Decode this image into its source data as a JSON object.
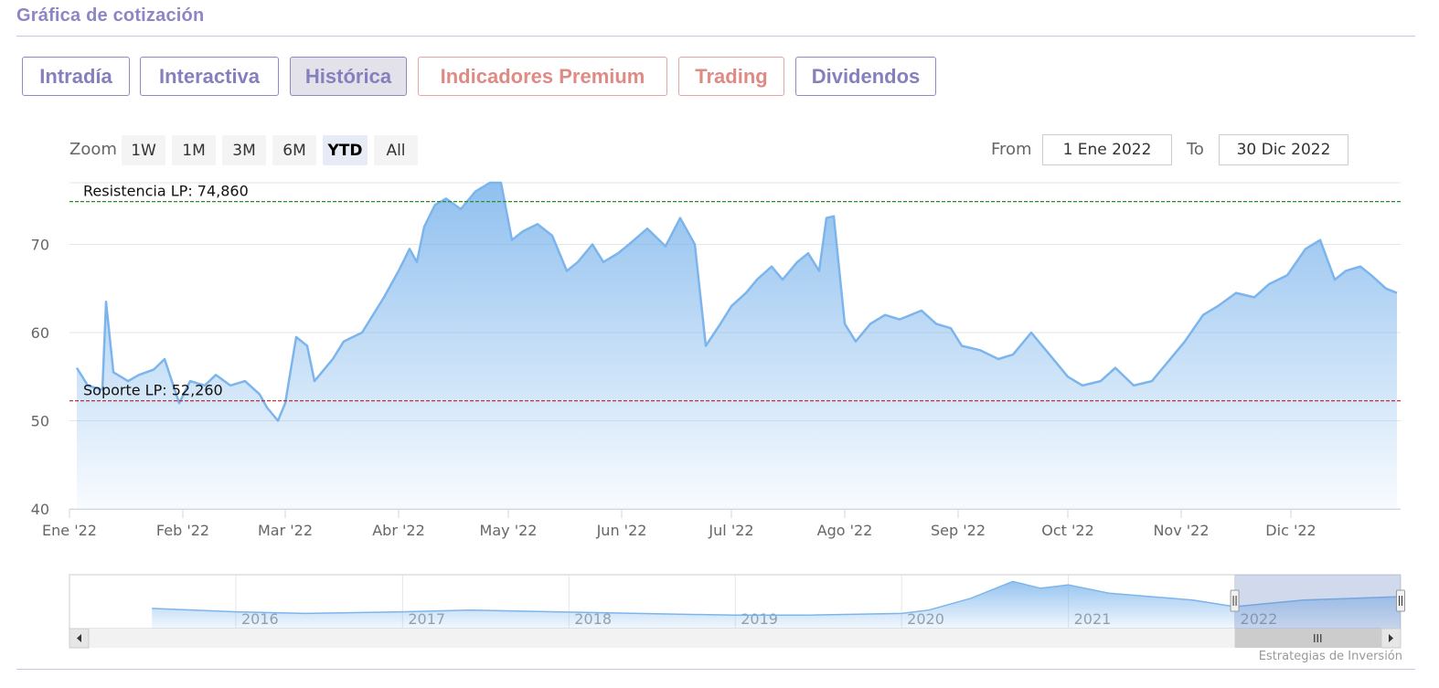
{
  "section": {
    "title": "Gráfica de cotización"
  },
  "tabs": [
    {
      "label": "Intradía",
      "style": "normal"
    },
    {
      "label": "Interactiva",
      "style": "normal"
    },
    {
      "label": "Histórica",
      "style": "active"
    },
    {
      "label": "Indicadores Premium",
      "style": "premium"
    },
    {
      "label": "Trading",
      "style": "premium"
    },
    {
      "label": "Dividendos",
      "style": "normal"
    }
  ],
  "range_selector": {
    "zoom_label": "Zoom",
    "buttons": [
      "1W",
      "1M",
      "3M",
      "6M",
      "YTD",
      "All"
    ],
    "selected": "YTD",
    "from_label": "From",
    "from_value": "1 Ene 2022",
    "to_label": "To",
    "to_value": "30 Dic 2022"
  },
  "colors": {
    "line": "#7cb5ec",
    "resistance": "#2e8b2e",
    "support": "#b22222",
    "tab_text": "#8580bd",
    "premium_text": "#e08a85"
  },
  "chart_data": {
    "type": "area",
    "title": "",
    "xlabel": "",
    "ylabel": "",
    "ylim": [
      40,
      77
    ],
    "yticks": [
      40,
      50,
      60,
      70
    ],
    "grid": true,
    "x_range": [
      "2022-01-01",
      "2022-12-31"
    ],
    "x_ticks": [
      {
        "date": "2022-01-01",
        "label": "Ene '22"
      },
      {
        "date": "2022-02-01",
        "label": "Feb '22"
      },
      {
        "date": "2022-03-01",
        "label": "Mar '22"
      },
      {
        "date": "2022-04-01",
        "label": "Abr '22"
      },
      {
        "date": "2022-05-01",
        "label": "May '22"
      },
      {
        "date": "2022-06-01",
        "label": "Jun '22"
      },
      {
        "date": "2022-07-01",
        "label": "Jul '22"
      },
      {
        "date": "2022-08-01",
        "label": "Ago '22"
      },
      {
        "date": "2022-09-01",
        "label": "Sep '22"
      },
      {
        "date": "2022-10-01",
        "label": "Oct '22"
      },
      {
        "date": "2022-11-01",
        "label": "Nov '22"
      },
      {
        "date": "2022-12-01",
        "label": "Dic '22"
      }
    ],
    "series": [
      {
        "values": [
          [
            "2022-01-03",
            56.0
          ],
          [
            "2022-01-06",
            54.0
          ],
          [
            "2022-01-10",
            53.5
          ],
          [
            "2022-01-11",
            63.5
          ],
          [
            "2022-01-13",
            55.5
          ],
          [
            "2022-01-17",
            54.5
          ],
          [
            "2022-01-20",
            55.2
          ],
          [
            "2022-01-24",
            55.8
          ],
          [
            "2022-01-27",
            57.0
          ],
          [
            "2022-01-31",
            52.0
          ],
          [
            "2022-02-03",
            54.5
          ],
          [
            "2022-02-07",
            54.0
          ],
          [
            "2022-02-10",
            55.2
          ],
          [
            "2022-02-14",
            54.0
          ],
          [
            "2022-02-18",
            54.5
          ],
          [
            "2022-02-22",
            53.0
          ],
          [
            "2022-02-24",
            51.5
          ],
          [
            "2022-02-27",
            50.0
          ],
          [
            "2022-03-01",
            52.0
          ],
          [
            "2022-03-04",
            59.5
          ],
          [
            "2022-03-07",
            58.5
          ],
          [
            "2022-03-09",
            54.5
          ],
          [
            "2022-03-14",
            57.0
          ],
          [
            "2022-03-17",
            59.0
          ],
          [
            "2022-03-22",
            60.0
          ],
          [
            "2022-03-28",
            64.0
          ],
          [
            "2022-04-01",
            67.0
          ],
          [
            "2022-04-04",
            69.5
          ],
          [
            "2022-04-06",
            68.0
          ],
          [
            "2022-04-08",
            72.0
          ],
          [
            "2022-04-11",
            74.5
          ],
          [
            "2022-04-14",
            75.2
          ],
          [
            "2022-04-18",
            74.0
          ],
          [
            "2022-04-22",
            76.0
          ],
          [
            "2022-04-26",
            77.0
          ],
          [
            "2022-04-29",
            77.0
          ],
          [
            "2022-05-02",
            70.5
          ],
          [
            "2022-05-05",
            71.5
          ],
          [
            "2022-05-09",
            72.3
          ],
          [
            "2022-05-13",
            71.0
          ],
          [
            "2022-05-17",
            67.0
          ],
          [
            "2022-05-20",
            68.0
          ],
          [
            "2022-05-24",
            70.0
          ],
          [
            "2022-05-27",
            68.0
          ],
          [
            "2022-05-31",
            69.0
          ],
          [
            "2022-06-03",
            70.0
          ],
          [
            "2022-06-08",
            71.8
          ],
          [
            "2022-06-13",
            69.8
          ],
          [
            "2022-06-17",
            73.0
          ],
          [
            "2022-06-21",
            70.0
          ],
          [
            "2022-06-24",
            58.5
          ],
          [
            "2022-06-28",
            61.0
          ],
          [
            "2022-07-01",
            63.0
          ],
          [
            "2022-07-05",
            64.5
          ],
          [
            "2022-07-08",
            66.0
          ],
          [
            "2022-07-12",
            67.5
          ],
          [
            "2022-07-15",
            66.0
          ],
          [
            "2022-07-19",
            68.0
          ],
          [
            "2022-07-22",
            69.0
          ],
          [
            "2022-07-25",
            67.0
          ],
          [
            "2022-07-27",
            73.0
          ],
          [
            "2022-07-29",
            73.2
          ],
          [
            "2022-08-01",
            61.0
          ],
          [
            "2022-08-04",
            59.0
          ],
          [
            "2022-08-08",
            61.0
          ],
          [
            "2022-08-12",
            62.0
          ],
          [
            "2022-08-16",
            61.5
          ],
          [
            "2022-08-22",
            62.5
          ],
          [
            "2022-08-26",
            61.0
          ],
          [
            "2022-08-30",
            60.5
          ],
          [
            "2022-09-02",
            58.5
          ],
          [
            "2022-09-07",
            58.0
          ],
          [
            "2022-09-12",
            57.0
          ],
          [
            "2022-09-16",
            57.5
          ],
          [
            "2022-09-21",
            60.0
          ],
          [
            "2022-09-26",
            57.5
          ],
          [
            "2022-10-01",
            55.0
          ],
          [
            "2022-10-05",
            54.0
          ],
          [
            "2022-10-10",
            54.5
          ],
          [
            "2022-10-14",
            56.0
          ],
          [
            "2022-10-19",
            54.0
          ],
          [
            "2022-10-24",
            54.5
          ],
          [
            "2022-10-28",
            56.5
          ],
          [
            "2022-11-02",
            59.0
          ],
          [
            "2022-11-07",
            62.0
          ],
          [
            "2022-11-11",
            63.0
          ],
          [
            "2022-11-16",
            64.5
          ],
          [
            "2022-11-21",
            64.0
          ],
          [
            "2022-11-25",
            65.5
          ],
          [
            "2022-11-30",
            66.5
          ],
          [
            "2022-12-05",
            69.5
          ],
          [
            "2022-12-09",
            70.5
          ],
          [
            "2022-12-13",
            66.0
          ],
          [
            "2022-12-16",
            67.0
          ],
          [
            "2022-12-20",
            67.5
          ],
          [
            "2022-12-23",
            66.5
          ],
          [
            "2022-12-27",
            65.0
          ],
          [
            "2022-12-30",
            64.5
          ]
        ]
      }
    ],
    "reference_lines": [
      {
        "label": "Resistencia LP: 74,860",
        "value": 74.86,
        "style": "resistance"
      },
      {
        "label": "Soporte LP: 52,260",
        "value": 52.26,
        "style": "support"
      }
    ],
    "navigator": {
      "year_labels": [
        "2016",
        "2017",
        "2018",
        "2019",
        "2020",
        "2021",
        "2022"
      ],
      "selected_range": [
        "2022-01-01",
        "2022-12-31"
      ],
      "values": [
        [
          "2015-07-01",
          42
        ],
        [
          "2016-01-01",
          40
        ],
        [
          "2016-06-01",
          39
        ],
        [
          "2017-01-01",
          40
        ],
        [
          "2017-06-01",
          41
        ],
        [
          "2017-12-01",
          40
        ],
        [
          "2018-06-01",
          39
        ],
        [
          "2019-01-01",
          38
        ],
        [
          "2019-06-01",
          38
        ],
        [
          "2020-01-01",
          39
        ],
        [
          "2020-03-01",
          41
        ],
        [
          "2020-06-01",
          48
        ],
        [
          "2020-09-01",
          58
        ],
        [
          "2020-11-01",
          54
        ],
        [
          "2021-01-01",
          56
        ],
        [
          "2021-04-01",
          51
        ],
        [
          "2021-07-01",
          49
        ],
        [
          "2021-10-01",
          47
        ],
        [
          "2022-01-01",
          43
        ],
        [
          "2022-06-01",
          47
        ],
        [
          "2022-12-31",
          49
        ]
      ]
    }
  },
  "navigator_ui": {
    "grip": "III"
  },
  "credits": {
    "text": "Estrategias de Inversión"
  }
}
